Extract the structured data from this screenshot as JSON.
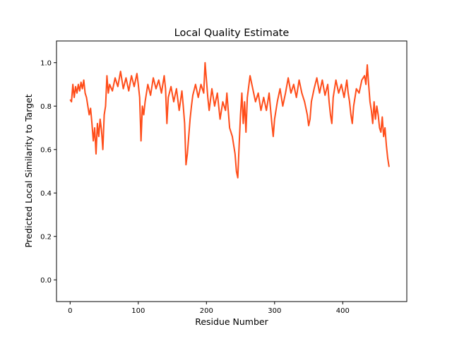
{
  "chart_data": {
    "type": "line",
    "title": "Local Quality Estimate",
    "xlabel": "Residue Number",
    "ylabel": "Predicted Local Similarity to Target",
    "xlim": [
      -20,
      494
    ],
    "ylim": [
      -0.1,
      1.1
    ],
    "xticks": [
      0,
      100,
      200,
      300,
      400
    ],
    "yticks": [
      0.0,
      0.2,
      0.4,
      0.6,
      0.8,
      1.0
    ],
    "grid": false,
    "line_color": "#ff4d1a",
    "series": [
      {
        "name": "",
        "points": [
          [
            0,
            0.83
          ],
          [
            2,
            0.82
          ],
          [
            4,
            0.9
          ],
          [
            6,
            0.84
          ],
          [
            8,
            0.89
          ],
          [
            10,
            0.86
          ],
          [
            12,
            0.9
          ],
          [
            14,
            0.87
          ],
          [
            16,
            0.91
          ],
          [
            18,
            0.88
          ],
          [
            20,
            0.92
          ],
          [
            22,
            0.86
          ],
          [
            24,
            0.84
          ],
          [
            26,
            0.8
          ],
          [
            28,
            0.76
          ],
          [
            30,
            0.79
          ],
          [
            32,
            0.72
          ],
          [
            34,
            0.64
          ],
          [
            36,
            0.7
          ],
          [
            38,
            0.58
          ],
          [
            40,
            0.72
          ],
          [
            42,
            0.66
          ],
          [
            44,
            0.74
          ],
          [
            46,
            0.69
          ],
          [
            48,
            0.6
          ],
          [
            50,
            0.76
          ],
          [
            52,
            0.8
          ],
          [
            54,
            0.94
          ],
          [
            56,
            0.86
          ],
          [
            58,
            0.9
          ],
          [
            62,
            0.87
          ],
          [
            66,
            0.93
          ],
          [
            70,
            0.89
          ],
          [
            74,
            0.96
          ],
          [
            78,
            0.88
          ],
          [
            82,
            0.93
          ],
          [
            86,
            0.87
          ],
          [
            90,
            0.94
          ],
          [
            94,
            0.89
          ],
          [
            98,
            0.95
          ],
          [
            100,
            0.9
          ],
          [
            102,
            0.84
          ],
          [
            104,
            0.64
          ],
          [
            106,
            0.8
          ],
          [
            108,
            0.76
          ],
          [
            110,
            0.82
          ],
          [
            114,
            0.9
          ],
          [
            118,
            0.85
          ],
          [
            122,
            0.93
          ],
          [
            126,
            0.88
          ],
          [
            130,
            0.92
          ],
          [
            134,
            0.86
          ],
          [
            138,
            0.94
          ],
          [
            140,
            0.88
          ],
          [
            142,
            0.72
          ],
          [
            144,
            0.84
          ],
          [
            148,
            0.89
          ],
          [
            152,
            0.82
          ],
          [
            156,
            0.88
          ],
          [
            160,
            0.78
          ],
          [
            164,
            0.87
          ],
          [
            166,
            0.8
          ],
          [
            168,
            0.72
          ],
          [
            170,
            0.53
          ],
          [
            172,
            0.58
          ],
          [
            174,
            0.66
          ],
          [
            176,
            0.74
          ],
          [
            178,
            0.8
          ],
          [
            180,
            0.85
          ],
          [
            184,
            0.9
          ],
          [
            188,
            0.84
          ],
          [
            192,
            0.9
          ],
          [
            196,
            0.86
          ],
          [
            198,
            1.0
          ],
          [
            200,
            0.92
          ],
          [
            202,
            0.84
          ],
          [
            204,
            0.78
          ],
          [
            208,
            0.88
          ],
          [
            212,
            0.8
          ],
          [
            216,
            0.86
          ],
          [
            220,
            0.74
          ],
          [
            224,
            0.82
          ],
          [
            228,
            0.78
          ],
          [
            230,
            0.86
          ],
          [
            234,
            0.7
          ],
          [
            238,
            0.66
          ],
          [
            242,
            0.58
          ],
          [
            244,
            0.5
          ],
          [
            246,
            0.47
          ],
          [
            248,
            0.62
          ],
          [
            250,
            0.76
          ],
          [
            252,
            0.86
          ],
          [
            254,
            0.72
          ],
          [
            256,
            0.82
          ],
          [
            258,
            0.68
          ],
          [
            260,
            0.84
          ],
          [
            264,
            0.94
          ],
          [
            268,
            0.88
          ],
          [
            272,
            0.82
          ],
          [
            276,
            0.86
          ],
          [
            280,
            0.78
          ],
          [
            284,
            0.84
          ],
          [
            288,
            0.78
          ],
          [
            292,
            0.86
          ],
          [
            296,
            0.72
          ],
          [
            298,
            0.66
          ],
          [
            300,
            0.74
          ],
          [
            304,
            0.82
          ],
          [
            308,
            0.88
          ],
          [
            312,
            0.8
          ],
          [
            316,
            0.86
          ],
          [
            320,
            0.93
          ],
          [
            324,
            0.86
          ],
          [
            328,
            0.9
          ],
          [
            332,
            0.84
          ],
          [
            336,
            0.92
          ],
          [
            340,
            0.86
          ],
          [
            344,
            0.82
          ],
          [
            348,
            0.76
          ],
          [
            350,
            0.71
          ],
          [
            352,
            0.74
          ],
          [
            354,
            0.82
          ],
          [
            358,
            0.88
          ],
          [
            362,
            0.93
          ],
          [
            366,
            0.86
          ],
          [
            370,
            0.92
          ],
          [
            374,
            0.85
          ],
          [
            378,
            0.9
          ],
          [
            380,
            0.82
          ],
          [
            382,
            0.76
          ],
          [
            384,
            0.72
          ],
          [
            386,
            0.84
          ],
          [
            390,
            0.92
          ],
          [
            394,
            0.86
          ],
          [
            398,
            0.9
          ],
          [
            402,
            0.84
          ],
          [
            406,
            0.92
          ],
          [
            408,
            0.86
          ],
          [
            410,
            0.82
          ],
          [
            412,
            0.76
          ],
          [
            414,
            0.72
          ],
          [
            416,
            0.8
          ],
          [
            418,
            0.84
          ],
          [
            420,
            0.88
          ],
          [
            424,
            0.86
          ],
          [
            428,
            0.92
          ],
          [
            432,
            0.94
          ],
          [
            434,
            0.9
          ],
          [
            436,
            0.99
          ],
          [
            438,
            0.9
          ],
          [
            440,
            0.82
          ],
          [
            442,
            0.78
          ],
          [
            444,
            0.72
          ],
          [
            446,
            0.82
          ],
          [
            448,
            0.74
          ],
          [
            450,
            0.8
          ],
          [
            452,
            0.76
          ],
          [
            454,
            0.7
          ],
          [
            456,
            0.68
          ],
          [
            458,
            0.75
          ],
          [
            460,
            0.66
          ],
          [
            462,
            0.7
          ],
          [
            464,
            0.62
          ],
          [
            466,
            0.56
          ],
          [
            468,
            0.52
          ]
        ]
      }
    ]
  }
}
